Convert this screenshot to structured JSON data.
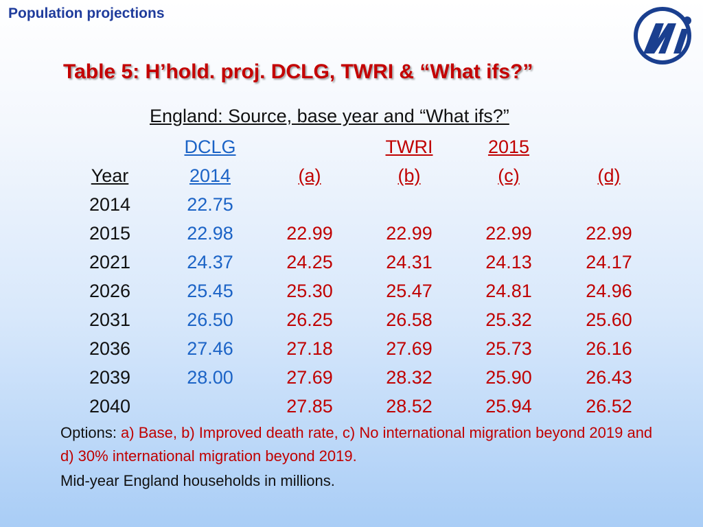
{
  "header": {
    "title": "Population projections"
  },
  "slide": {
    "title": "Table 5: H’hold. proj. DCLG, TWRI & “What ifs?”",
    "subtitle": "England: Source, base year and “What ifs?”"
  },
  "table": {
    "header_row1": [
      "",
      "DCLG",
      "",
      "TWRI",
      "2015",
      ""
    ],
    "header_row2": [
      "Year",
      "2014",
      "(a)",
      "(b)",
      "(c)",
      "(d)"
    ],
    "rows": [
      [
        "2014",
        "22.75",
        "",
        "",
        "",
        ""
      ],
      [
        "2015",
        "22.98",
        "22.99",
        "22.99",
        "22.99",
        "22.99"
      ],
      [
        "2021",
        "24.37",
        "24.25",
        "24.31",
        "24.13",
        "24.17"
      ],
      [
        "2026",
        "25.45",
        "25.30",
        "25.47",
        "24.81",
        "24.96"
      ],
      [
        "2031",
        "26.50",
        "26.25",
        "26.58",
        "25.32",
        "25.60"
      ],
      [
        "2036",
        "27.46",
        "27.18",
        "27.69",
        "25.73",
        "26.16"
      ],
      [
        "2039",
        "28.00",
        "27.69",
        "28.32",
        "25.90",
        "26.43"
      ],
      [
        "2040",
        "",
        "27.85",
        "28.52",
        "25.94",
        "26.52"
      ]
    ]
  },
  "notes": {
    "options_label": "Options: ",
    "options_text": "a) Base, b) Improved death rate, c) No international migration beyond 2019 and d) 30% international migration beyond 2019.",
    "units": "Mid-year England households in millions."
  },
  "colors": {
    "header": "#1f3c9c",
    "title": "#c40000",
    "dclg": "#1b63c6",
    "whatifs": "#c00000"
  },
  "icons": {
    "logo": "logo-icon"
  }
}
